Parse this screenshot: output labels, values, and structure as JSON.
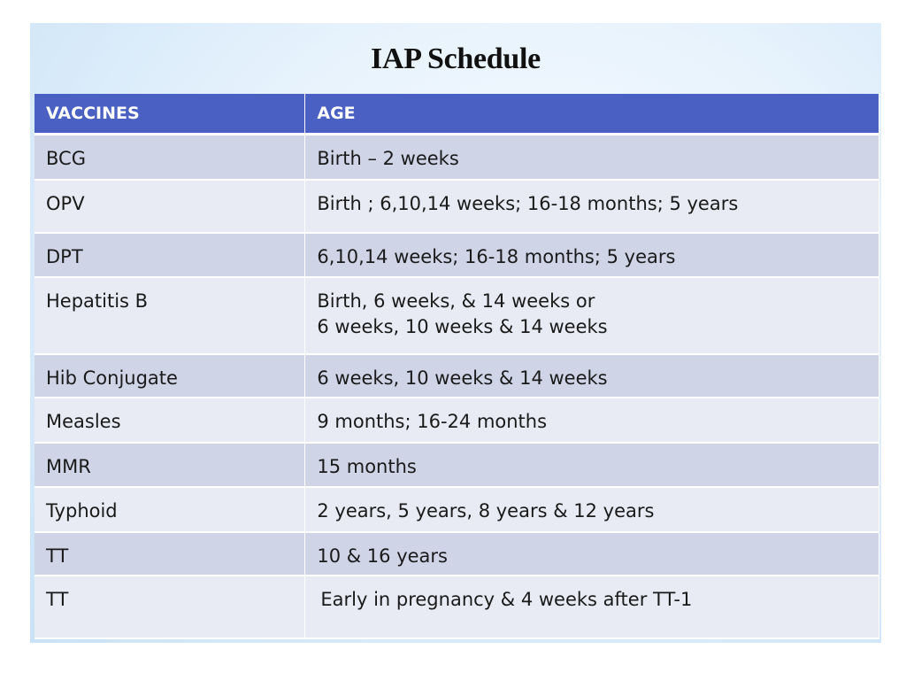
{
  "title": "IAP Schedule",
  "table": {
    "headers": [
      "VACCINES",
      "AGE"
    ],
    "rows": [
      {
        "vaccine": "BCG",
        "age": [
          "Birth – 2 weeks"
        ]
      },
      {
        "vaccine": "OPV",
        "age": [
          "Birth ; 6,10,14 weeks; 16-18 months; 5 years"
        ]
      },
      {
        "vaccine": "DPT",
        "age": [
          "6,10,14 weeks;  16-18 months; 5 years"
        ]
      },
      {
        "vaccine": "Hepatitis B",
        "age": [
          "Birth, 6 weeks, & 14 weeks or",
          "6 weeks, 10 weeks & 14 weeks"
        ]
      },
      {
        "vaccine": "Hib Conjugate",
        "age": [
          "6 weeks, 10 weeks & 14 weeks"
        ]
      },
      {
        "vaccine": "Measles",
        "age": [
          "9 months; 16-24 months"
        ]
      },
      {
        "vaccine": "MMR",
        "age": [
          "15 months"
        ]
      },
      {
        "vaccine": "Typhoid",
        "age": [
          "2 years, 5 years, 8 years & 12 years"
        ]
      },
      {
        "vaccine": "TT",
        "age": [
          "10 & 16 years"
        ]
      },
      {
        "vaccine": "TT",
        "age": [
          "Early in pregnancy &  4 weeks after TT-1"
        ]
      }
    ]
  },
  "colors": {
    "header_bg": "#4a60c2",
    "row_odd_bg": "#cfd4e6",
    "row_even_bg": "#e8ebf3",
    "slide_bg": "#e6f2fc"
  }
}
